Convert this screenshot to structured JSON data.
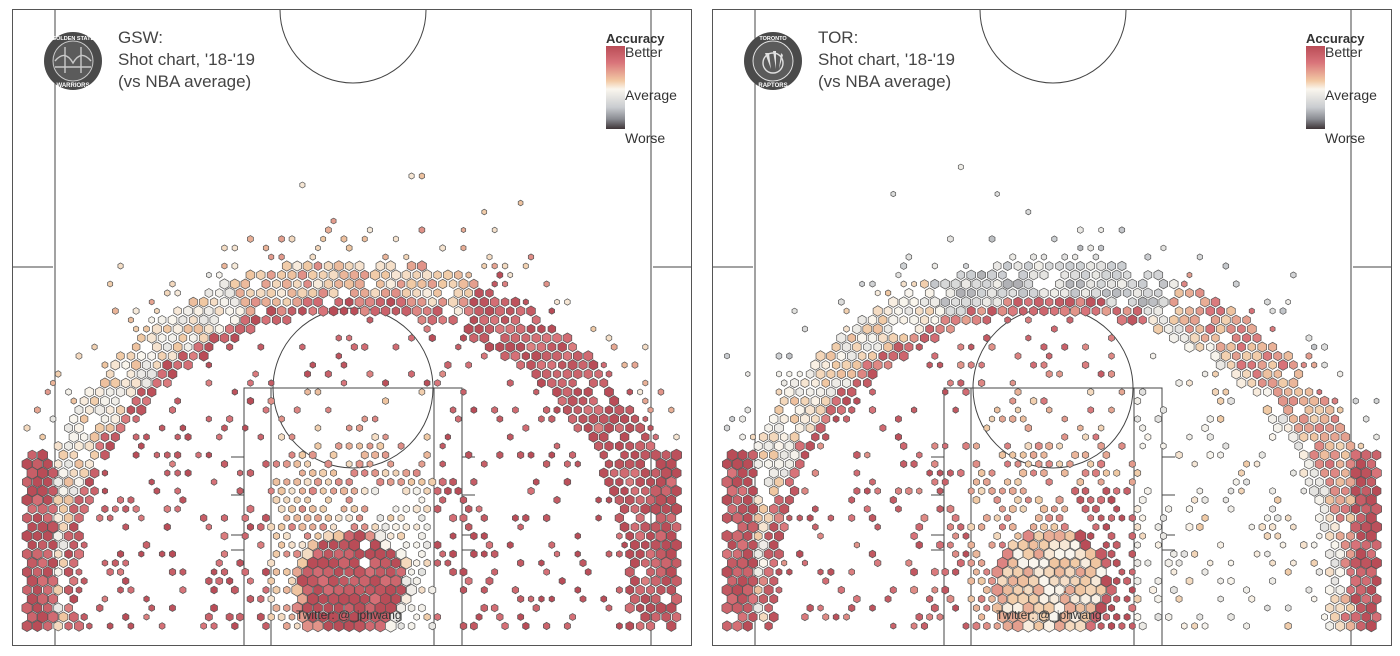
{
  "panels": [
    {
      "id": "left",
      "team": "GSW",
      "title_lines": [
        "GSW:",
        "Shot chart, '18-'19",
        "(vs NBA average)"
      ],
      "logo_text": [
        "GOLDEN STATE",
        "WARRIORS"
      ],
      "logo_colors": {
        "ring": "#4a4a4a",
        "inner": "#5b5b5b",
        "accent": "#c9c9c9"
      }
    },
    {
      "id": "right",
      "team": "TOR",
      "title_lines": [
        "TOR:",
        "Shot chart, '18-'19",
        "(vs NBA average)"
      ],
      "logo_text": [
        "TORONTO",
        "RAPTORS"
      ],
      "logo_colors": {
        "ring": "#4a4a4a",
        "inner": "#5b5b5b",
        "accent": "#e0e0e0"
      }
    }
  ],
  "legend": {
    "title": "Accuracy",
    "top": "Better",
    "middle": "Average",
    "bottom": "Worse"
  },
  "colors": {
    "better": "#b94c57",
    "better_light": "#d9747a",
    "above_avg": "#f0c8a2",
    "average": "#faf6ee",
    "below_avg": "#c9ccd0",
    "worse": "#3e3538",
    "court_line": "#444444",
    "rim": "#e05a2a"
  },
  "credit": "Twitter: @_jphwang",
  "chart_data": [
    {
      "type": "heatmap",
      "subtype": "hexbin shot chart",
      "team": "GSW",
      "title": "GSW: Shot chart, '18-'19 (vs NBA average)",
      "color_scale": {
        "label": "Accuracy",
        "stops": [
          "Worse",
          "Average",
          "Better"
        ]
      },
      "zones": [
        {
          "zone": "restricted area",
          "accuracy": "better",
          "level": 0.95
        },
        {
          "zone": "paint (non-RA)",
          "accuracy": "above average",
          "level": 0.35
        },
        {
          "zone": "left mid-range",
          "accuracy": "better",
          "level": 0.85
        },
        {
          "zone": "right mid-range",
          "accuracy": "better",
          "level": 0.9
        },
        {
          "zone": "elbow / free-throw line",
          "accuracy": "better",
          "level": 0.8
        },
        {
          "zone": "left corner 3",
          "accuracy": "better",
          "level": 0.95
        },
        {
          "zone": "right corner 3",
          "accuracy": "better",
          "level": 0.95
        },
        {
          "zone": "left wing 3",
          "accuracy": "average",
          "level": 0.05
        },
        {
          "zone": "top of key 3",
          "accuracy": "above average",
          "level": 0.3
        },
        {
          "zone": "right wing 3",
          "accuracy": "better",
          "level": 0.85
        },
        {
          "zone": "deep 3",
          "accuracy": "above average",
          "level": 0.3
        }
      ]
    },
    {
      "type": "heatmap",
      "subtype": "hexbin shot chart",
      "team": "TOR",
      "title": "TOR: Shot chart, '18-'19 (vs NBA average)",
      "color_scale": {
        "label": "Accuracy",
        "stops": [
          "Worse",
          "Average",
          "Better"
        ]
      },
      "zones": [
        {
          "zone": "restricted area",
          "accuracy": "above average",
          "level": 0.2
        },
        {
          "zone": "paint (non-RA)",
          "accuracy": "above average",
          "level": 0.4
        },
        {
          "zone": "right low block",
          "accuracy": "better",
          "level": 0.85
        },
        {
          "zone": "left mid-range",
          "accuracy": "better",
          "level": 0.75
        },
        {
          "zone": "right mid-range",
          "accuracy": "average",
          "level": 0.0
        },
        {
          "zone": "elbow / free-throw line",
          "accuracy": "better",
          "level": 0.7
        },
        {
          "zone": "left corner 3",
          "accuracy": "better",
          "level": 0.9
        },
        {
          "zone": "right corner 3",
          "accuracy": "better",
          "level": 0.9
        },
        {
          "zone": "left wing 3",
          "accuracy": "average",
          "level": 0.05
        },
        {
          "zone": "top of key 3",
          "accuracy": "below average",
          "level": -0.35
        },
        {
          "zone": "right wing 3",
          "accuracy": "above average",
          "level": 0.45
        },
        {
          "zone": "deep 3",
          "accuracy": "below average",
          "level": -0.3
        }
      ]
    }
  ]
}
